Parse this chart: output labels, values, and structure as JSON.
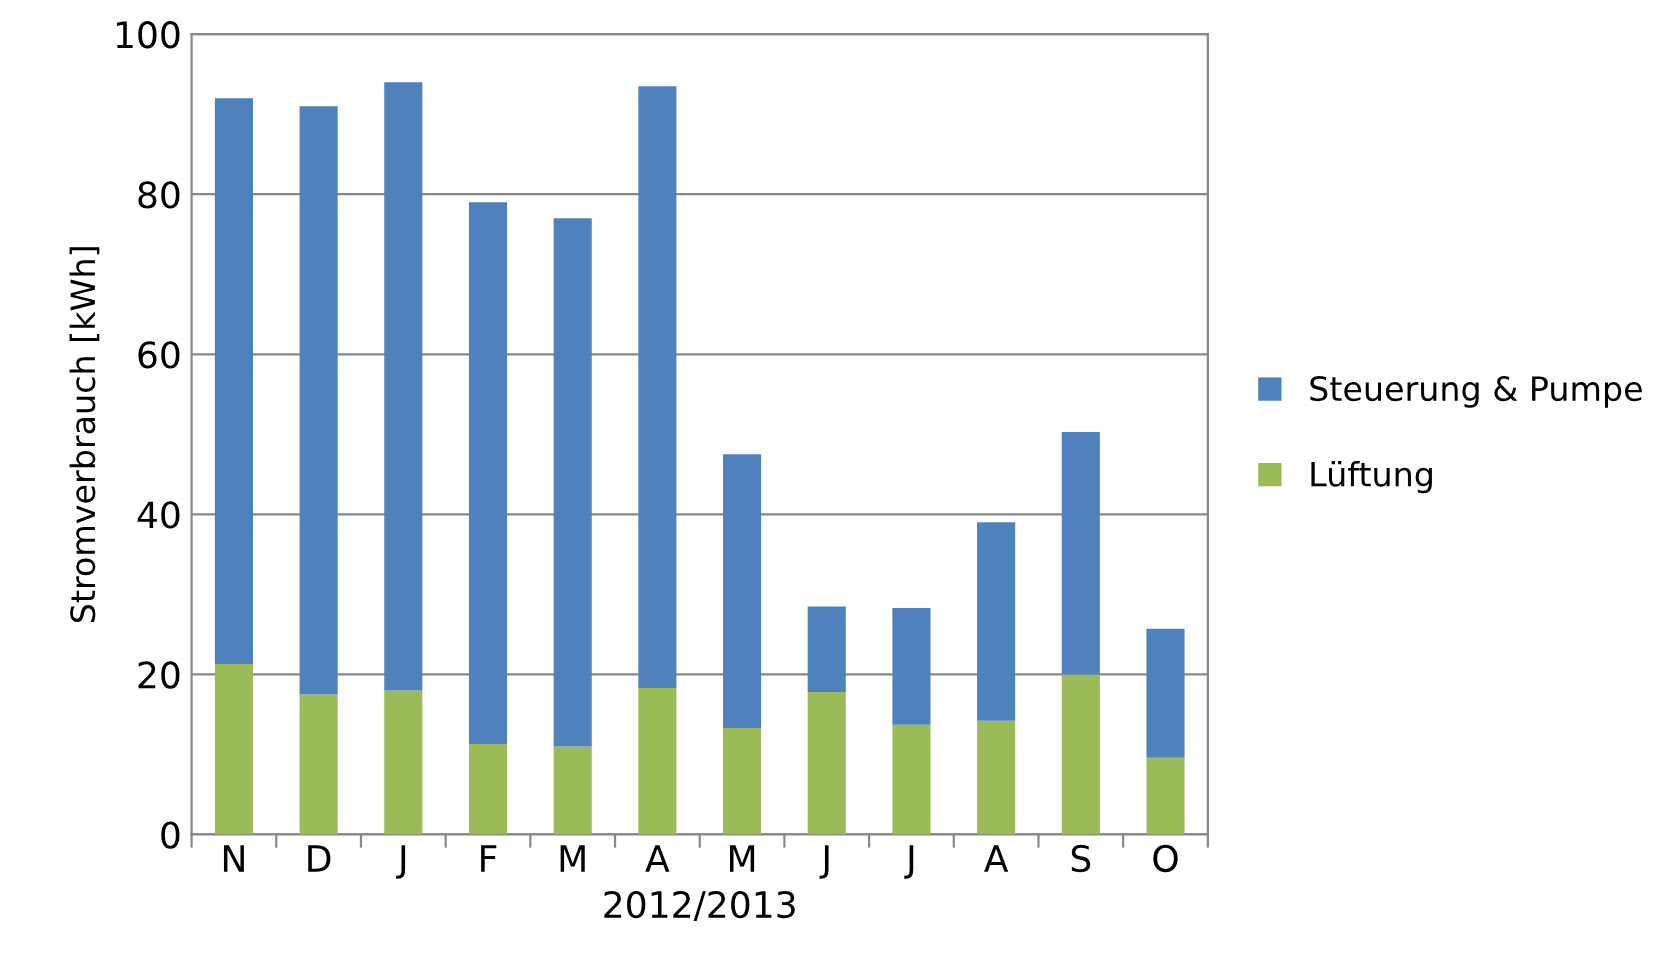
{
  "chart_data": {
    "type": "bar",
    "stacked": true,
    "categories": [
      "N",
      "D",
      "J",
      "F",
      "M",
      "A",
      "M",
      "J",
      "J",
      "A",
      "S",
      "O"
    ],
    "series": [
      {
        "name": "Lüftung",
        "color": "#9bbb59",
        "values": [
          21.3,
          17.5,
          18,
          11.3,
          11,
          18.3,
          13.3,
          17.8,
          13.7,
          14.2,
          20,
          9.6
        ]
      },
      {
        "name": "Steuerung & Pumpe",
        "color": "#4f81bd",
        "values": [
          70.7,
          73.5,
          76,
          67.7,
          66,
          75.2,
          34.2,
          10.7,
          14.6,
          24.8,
          30.3,
          16.1
        ]
      }
    ],
    "xlabel": "2012/2013",
    "ylabel": "Stromverbrauch [kWh]",
    "ylim": [
      0,
      100
    ],
    "yticks": [
      0,
      20,
      40,
      60,
      80,
      100
    ],
    "grid": "y",
    "legend": "right"
  }
}
